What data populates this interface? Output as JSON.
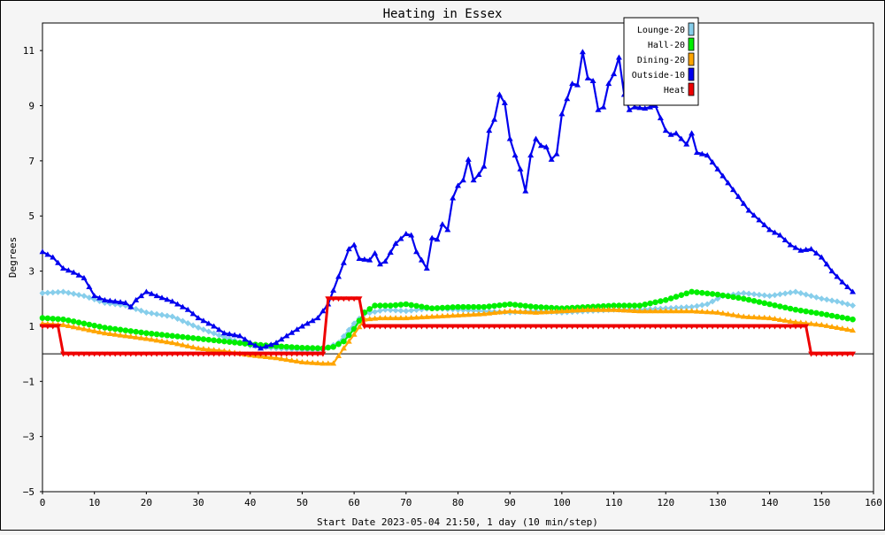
{
  "chart_data": {
    "type": "line",
    "title": "Heating in Essex",
    "xlabel": "Start Date 2023-05-04 21:50, 1 day (10 min/step)",
    "ylabel": "Degrees",
    "xlim": [
      0,
      160
    ],
    "ylim": [
      -5,
      12
    ],
    "xticks": [
      0,
      10,
      20,
      30,
      40,
      50,
      60,
      70,
      80,
      90,
      100,
      110,
      120,
      130,
      140,
      150,
      160
    ],
    "yticks": [
      -5,
      -3,
      -1,
      1,
      3,
      5,
      7,
      9,
      11
    ],
    "grid": true,
    "legend_position": "top-right",
    "series": [
      {
        "name": "Lounge-20",
        "color": "#87ceeb",
        "marker": "diamond",
        "points": [
          [
            0,
            2.2
          ],
          [
            4,
            2.25
          ],
          [
            8,
            2.1
          ],
          [
            12,
            1.85
          ],
          [
            16,
            1.75
          ],
          [
            20,
            1.5
          ],
          [
            25,
            1.35
          ],
          [
            30,
            0.95
          ],
          [
            35,
            0.6
          ],
          [
            40,
            0.3
          ],
          [
            45,
            0.2
          ],
          [
            50,
            0.15
          ],
          [
            54,
            0.15
          ],
          [
            57,
            0.4
          ],
          [
            60,
            1.1
          ],
          [
            62,
            1.45
          ],
          [
            66,
            1.6
          ],
          [
            70,
            1.55
          ],
          [
            75,
            1.65
          ],
          [
            80,
            1.6
          ],
          [
            85,
            1.55
          ],
          [
            90,
            1.5
          ],
          [
            95,
            1.55
          ],
          [
            100,
            1.5
          ],
          [
            105,
            1.55
          ],
          [
            110,
            1.6
          ],
          [
            115,
            1.6
          ],
          [
            120,
            1.65
          ],
          [
            125,
            1.7
          ],
          [
            128,
            1.8
          ],
          [
            131,
            2.1
          ],
          [
            135,
            2.2
          ],
          [
            140,
            2.1
          ],
          [
            145,
            2.25
          ],
          [
            150,
            2.0
          ],
          [
            153,
            1.9
          ],
          [
            156,
            1.75
          ]
        ]
      },
      {
        "name": "Hall-20",
        "color": "#00ee00",
        "marker": "circle",
        "points": [
          [
            0,
            1.3
          ],
          [
            4,
            1.25
          ],
          [
            8,
            1.1
          ],
          [
            12,
            0.95
          ],
          [
            16,
            0.85
          ],
          [
            20,
            0.75
          ],
          [
            25,
            0.65
          ],
          [
            30,
            0.55
          ],
          [
            35,
            0.45
          ],
          [
            40,
            0.35
          ],
          [
            45,
            0.28
          ],
          [
            50,
            0.22
          ],
          [
            54,
            0.2
          ],
          [
            56,
            0.25
          ],
          [
            58,
            0.45
          ],
          [
            60,
            0.9
          ],
          [
            62,
            1.5
          ],
          [
            64,
            1.75
          ],
          [
            67,
            1.75
          ],
          [
            70,
            1.8
          ],
          [
            75,
            1.65
          ],
          [
            80,
            1.7
          ],
          [
            85,
            1.7
          ],
          [
            90,
            1.8
          ],
          [
            95,
            1.7
          ],
          [
            100,
            1.65
          ],
          [
            105,
            1.7
          ],
          [
            110,
            1.75
          ],
          [
            115,
            1.75
          ],
          [
            120,
            1.95
          ],
          [
            125,
            2.25
          ],
          [
            130,
            2.15
          ],
          [
            135,
            2.0
          ],
          [
            140,
            1.8
          ],
          [
            145,
            1.6
          ],
          [
            150,
            1.45
          ],
          [
            153,
            1.35
          ],
          [
            156,
            1.25
          ]
        ]
      },
      {
        "name": "Dining-20",
        "color": "#ffa500",
        "marker": "triangle-up",
        "points": [
          [
            0,
            1.1
          ],
          [
            4,
            1.05
          ],
          [
            8,
            0.9
          ],
          [
            12,
            0.75
          ],
          [
            16,
            0.65
          ],
          [
            20,
            0.55
          ],
          [
            25,
            0.4
          ],
          [
            30,
            0.2
          ],
          [
            35,
            0.1
          ],
          [
            40,
            -0.05
          ],
          [
            45,
            -0.15
          ],
          [
            50,
            -0.3
          ],
          [
            54,
            -0.35
          ],
          [
            56,
            -0.35
          ],
          [
            58,
            0.2
          ],
          [
            60,
            0.7
          ],
          [
            62,
            1.25
          ],
          [
            65,
            1.3
          ],
          [
            70,
            1.3
          ],
          [
            75,
            1.35
          ],
          [
            80,
            1.4
          ],
          [
            85,
            1.45
          ],
          [
            90,
            1.55
          ],
          [
            95,
            1.5
          ],
          [
            100,
            1.55
          ],
          [
            105,
            1.6
          ],
          [
            110,
            1.6
          ],
          [
            115,
            1.55
          ],
          [
            120,
            1.55
          ],
          [
            125,
            1.55
          ],
          [
            130,
            1.5
          ],
          [
            135,
            1.35
          ],
          [
            140,
            1.3
          ],
          [
            145,
            1.15
          ],
          [
            150,
            1.05
          ],
          [
            153,
            0.95
          ],
          [
            156,
            0.85
          ]
        ]
      },
      {
        "name": "Outside-10",
        "color": "#0000ee",
        "marker": "triangle-up",
        "points": [
          [
            0,
            3.7
          ],
          [
            2,
            3.5
          ],
          [
            4,
            3.1
          ],
          [
            6,
            2.95
          ],
          [
            8,
            2.75
          ],
          [
            10,
            2.1
          ],
          [
            12,
            1.95
          ],
          [
            14,
            1.9
          ],
          [
            16,
            1.85
          ],
          [
            17,
            1.7
          ],
          [
            18,
            1.95
          ],
          [
            20,
            2.25
          ],
          [
            22,
            2.1
          ],
          [
            25,
            1.9
          ],
          [
            28,
            1.6
          ],
          [
            30,
            1.3
          ],
          [
            33,
            1.0
          ],
          [
            35,
            0.75
          ],
          [
            38,
            0.65
          ],
          [
            40,
            0.4
          ],
          [
            42,
            0.2
          ],
          [
            45,
            0.4
          ],
          [
            47,
            0.65
          ],
          [
            50,
            1.0
          ],
          [
            53,
            1.3
          ],
          [
            55,
            1.8
          ],
          [
            57,
            2.8
          ],
          [
            59,
            3.8
          ],
          [
            60,
            3.95
          ],
          [
            61,
            3.45
          ],
          [
            63,
            3.4
          ],
          [
            64,
            3.65
          ],
          [
            65,
            3.25
          ],
          [
            66,
            3.35
          ],
          [
            68,
            4.0
          ],
          [
            70,
            4.35
          ],
          [
            71,
            4.3
          ],
          [
            72,
            3.7
          ],
          [
            74,
            3.1
          ],
          [
            75,
            4.2
          ],
          [
            76,
            4.15
          ],
          [
            77,
            4.7
          ],
          [
            78,
            4.5
          ],
          [
            79,
            5.65
          ],
          [
            80,
            6.1
          ],
          [
            81,
            6.3
          ],
          [
            82,
            7.05
          ],
          [
            83,
            6.3
          ],
          [
            84,
            6.5
          ],
          [
            85,
            6.8
          ],
          [
            86,
            8.1
          ],
          [
            87,
            8.5
          ],
          [
            88,
            9.4
          ],
          [
            89,
            9.1
          ],
          [
            90,
            7.8
          ],
          [
            91,
            7.2
          ],
          [
            92,
            6.7
          ],
          [
            93,
            5.9
          ],
          [
            94,
            7.2
          ],
          [
            95,
            7.8
          ],
          [
            96,
            7.55
          ],
          [
            97,
            7.5
          ],
          [
            98,
            7.05
          ],
          [
            99,
            7.25
          ],
          [
            100,
            8.7
          ],
          [
            101,
            9.25
          ],
          [
            102,
            9.8
          ],
          [
            103,
            9.75
          ],
          [
            104,
            10.95
          ],
          [
            105,
            10.0
          ],
          [
            106,
            9.9
          ],
          [
            107,
            8.85
          ],
          [
            108,
            8.95
          ],
          [
            109,
            9.8
          ],
          [
            110,
            10.15
          ],
          [
            111,
            10.75
          ],
          [
            112,
            9.4
          ],
          [
            113,
            8.85
          ],
          [
            114,
            8.95
          ],
          [
            116,
            8.9
          ],
          [
            117,
            8.95
          ],
          [
            118,
            9.0
          ],
          [
            120,
            8.1
          ],
          [
            121,
            7.95
          ],
          [
            122,
            8.0
          ],
          [
            124,
            7.6
          ],
          [
            125,
            8.0
          ],
          [
            126,
            7.3
          ],
          [
            128,
            7.2
          ],
          [
            130,
            6.7
          ],
          [
            132,
            6.2
          ],
          [
            134,
            5.7
          ],
          [
            136,
            5.2
          ],
          [
            138,
            4.85
          ],
          [
            140,
            4.5
          ],
          [
            142,
            4.3
          ],
          [
            144,
            3.95
          ],
          [
            146,
            3.75
          ],
          [
            148,
            3.8
          ],
          [
            150,
            3.5
          ],
          [
            152,
            3.0
          ],
          [
            154,
            2.6
          ],
          [
            156,
            2.25
          ]
        ]
      },
      {
        "name": "Heat",
        "color": "#ee0000",
        "marker": "triangle-down",
        "points": [
          [
            0,
            1.0
          ],
          [
            3,
            1.0
          ],
          [
            4,
            0.0
          ],
          [
            54,
            0.0
          ],
          [
            55,
            2.0
          ],
          [
            61,
            2.0
          ],
          [
            62,
            1.0
          ],
          [
            147,
            1.0
          ],
          [
            148,
            0.0
          ],
          [
            156,
            0.0
          ]
        ]
      }
    ]
  }
}
